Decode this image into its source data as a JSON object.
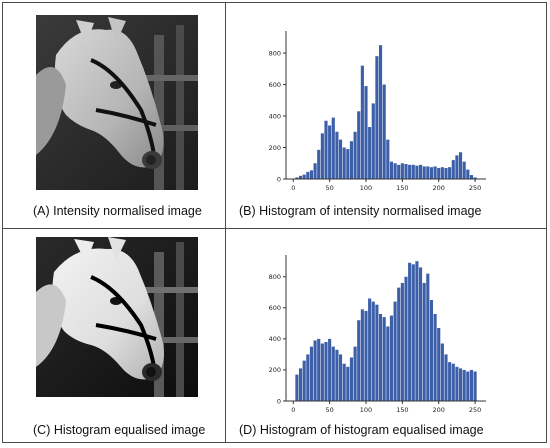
{
  "captions": {
    "a": "(A) Intensity normalised image",
    "b": "(B) Histogram of intensity normalised image",
    "c": "(C) Histogram equalised image",
    "d": "(D) Histogram of histogram equalised image"
  },
  "colors": {
    "bar": "#3c5fa8",
    "axis": "#333333",
    "frame": "#4a4a4a"
  },
  "chart_data": [
    {
      "type": "bar",
      "title": "",
      "xlabel": "",
      "ylabel": "",
      "xlim": [
        -10,
        265
      ],
      "ylim": [
        0,
        940
      ],
      "xticks": [
        0,
        50,
        100,
        150,
        200,
        250
      ],
      "yticks": [
        0,
        200,
        400,
        600,
        800
      ],
      "x": [
        5,
        10,
        15,
        20,
        25,
        30,
        35,
        40,
        45,
        50,
        55,
        60,
        65,
        70,
        75,
        80,
        85,
        90,
        95,
        100,
        105,
        110,
        115,
        120,
        125,
        130,
        135,
        140,
        145,
        150,
        155,
        160,
        165,
        170,
        175,
        180,
        185,
        190,
        195,
        200,
        205,
        210,
        215,
        220,
        225,
        230,
        235,
        240,
        245,
        250
      ],
      "values": [
        10,
        20,
        28,
        45,
        55,
        100,
        185,
        290,
        370,
        340,
        390,
        300,
        250,
        200,
        190,
        240,
        300,
        430,
        720,
        590,
        330,
        480,
        780,
        850,
        600,
        250,
        110,
        100,
        90,
        100,
        95,
        90,
        90,
        85,
        90,
        80,
        80,
        75,
        80,
        70,
        75,
        70,
        75,
        120,
        150,
        170,
        110,
        60,
        25,
        10
      ]
    },
    {
      "type": "bar",
      "title": "",
      "xlabel": "",
      "ylabel": "",
      "xlim": [
        -10,
        265
      ],
      "ylim": [
        0,
        940
      ],
      "xticks": [
        0,
        50,
        100,
        150,
        200,
        250
      ],
      "yticks": [
        0,
        200,
        400,
        600,
        800
      ],
      "x": [
        5,
        10,
        15,
        20,
        25,
        30,
        35,
        40,
        45,
        50,
        55,
        60,
        65,
        70,
        75,
        80,
        85,
        90,
        95,
        100,
        105,
        110,
        115,
        120,
        125,
        130,
        135,
        140,
        145,
        150,
        155,
        160,
        165,
        170,
        175,
        180,
        185,
        190,
        195,
        200,
        205,
        210,
        215,
        220,
        225,
        230,
        235,
        240,
        245,
        250
      ],
      "values": [
        170,
        210,
        260,
        300,
        350,
        390,
        400,
        370,
        380,
        400,
        350,
        330,
        300,
        240,
        220,
        280,
        350,
        520,
        590,
        580,
        660,
        640,
        620,
        560,
        540,
        480,
        550,
        640,
        730,
        760,
        800,
        890,
        880,
        900,
        860,
        760,
        820,
        650,
        560,
        470,
        370,
        300,
        250,
        240,
        220,
        210,
        200,
        190,
        200,
        190
      ]
    }
  ]
}
